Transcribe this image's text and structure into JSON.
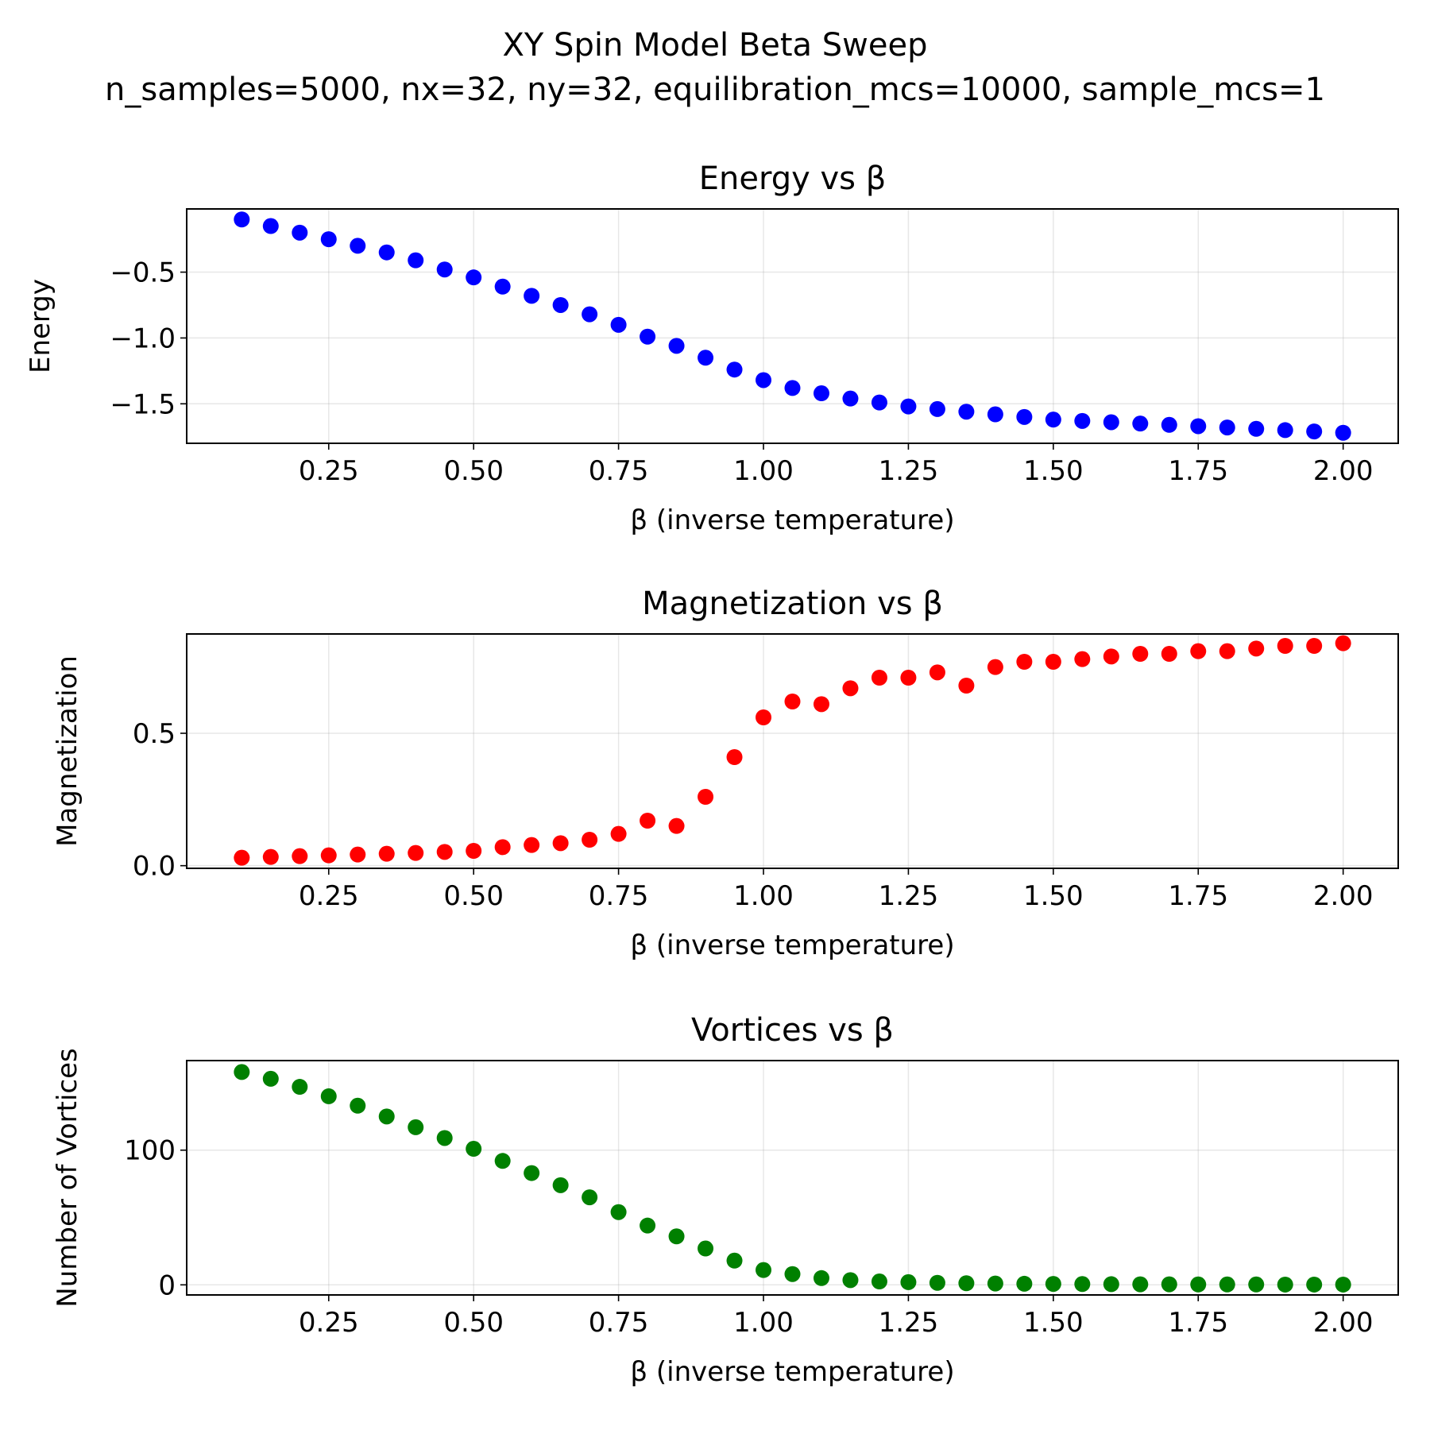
{
  "figure": {
    "title_line1": "XY Spin Model Beta Sweep",
    "title_line2": "n_samples=5000, nx=32, ny=32, equilibration_mcs=10000, sample_mcs=1"
  },
  "chart_data": [
    {
      "type": "scatter",
      "title": "Energy vs β",
      "xlabel": "β (inverse temperature)",
      "ylabel": "Energy",
      "xlim": [
        0.005,
        2.095
      ],
      "ylim": [
        -1.8,
        -0.02
      ],
      "xticks": [
        0.25,
        0.5,
        0.75,
        1.0,
        1.25,
        1.5,
        1.75,
        2.0
      ],
      "xtick_labels": [
        "0.25",
        "0.50",
        "0.75",
        "1.00",
        "1.25",
        "1.50",
        "1.75",
        "2.00"
      ],
      "yticks": [
        -0.5,
        -1.0,
        -1.5
      ],
      "ytick_labels": [
        "−0.5",
        "−1.0",
        "−1.5"
      ],
      "grid": true,
      "color": "#0000ff",
      "series": [
        {
          "x": [
            0.1,
            0.15,
            0.2,
            0.25,
            0.3,
            0.35,
            0.4,
            0.45,
            0.5,
            0.55,
            0.6,
            0.65,
            0.7,
            0.75,
            0.8,
            0.85,
            0.9,
            0.95,
            1.0,
            1.05,
            1.1,
            1.15,
            1.2,
            1.25,
            1.3,
            1.35,
            1.4,
            1.45,
            1.5,
            1.55,
            1.6,
            1.65,
            1.7,
            1.75,
            1.8,
            1.85,
            1.9,
            1.95,
            2.0
          ],
          "y": [
            -0.1,
            -0.15,
            -0.2,
            -0.25,
            -0.3,
            -0.35,
            -0.41,
            -0.48,
            -0.54,
            -0.61,
            -0.68,
            -0.75,
            -0.82,
            -0.9,
            -0.99,
            -1.06,
            -1.15,
            -1.24,
            -1.32,
            -1.38,
            -1.42,
            -1.46,
            -1.49,
            -1.52,
            -1.54,
            -1.56,
            -1.58,
            -1.6,
            -1.62,
            -1.63,
            -1.64,
            -1.65,
            -1.66,
            -1.67,
            -1.68,
            -1.69,
            -1.7,
            -1.71,
            -1.72
          ]
        }
      ]
    },
    {
      "type": "scatter",
      "title": "Magnetization vs β",
      "xlabel": "β (inverse temperature)",
      "ylabel": "Magnetization",
      "xlim": [
        0.005,
        2.095
      ],
      "ylim": [
        -0.01,
        0.875
      ],
      "xticks": [
        0.25,
        0.5,
        0.75,
        1.0,
        1.25,
        1.5,
        1.75,
        2.0
      ],
      "xtick_labels": [
        "0.25",
        "0.50",
        "0.75",
        "1.00",
        "1.25",
        "1.50",
        "1.75",
        "2.00"
      ],
      "yticks": [
        0.0,
        0.5
      ],
      "ytick_labels": [
        "0.0",
        "0.5"
      ],
      "grid": true,
      "color": "#ff0000",
      "series": [
        {
          "x": [
            0.1,
            0.15,
            0.2,
            0.25,
            0.3,
            0.35,
            0.4,
            0.45,
            0.5,
            0.55,
            0.6,
            0.65,
            0.7,
            0.75,
            0.8,
            0.85,
            0.9,
            0.95,
            1.0,
            1.05,
            1.1,
            1.15,
            1.2,
            1.25,
            1.3,
            1.35,
            1.4,
            1.45,
            1.5,
            1.55,
            1.6,
            1.65,
            1.7,
            1.75,
            1.8,
            1.85,
            1.9,
            1.95,
            2.0
          ],
          "y": [
            0.03,
            0.033,
            0.036,
            0.039,
            0.042,
            0.045,
            0.048,
            0.052,
            0.056,
            0.07,
            0.078,
            0.085,
            0.098,
            0.12,
            0.17,
            0.15,
            0.26,
            0.41,
            0.56,
            0.62,
            0.61,
            0.67,
            0.71,
            0.71,
            0.73,
            0.68,
            0.75,
            0.77,
            0.77,
            0.78,
            0.79,
            0.8,
            0.8,
            0.81,
            0.81,
            0.82,
            0.83,
            0.83,
            0.84
          ]
        }
      ]
    },
    {
      "type": "scatter",
      "title": "Vortices vs β",
      "xlabel": "β (inverse temperature)",
      "ylabel": "Number of Vortices",
      "xlim": [
        0.005,
        2.095
      ],
      "ylim": [
        -7.5,
        166.5
      ],
      "xticks": [
        0.25,
        0.5,
        0.75,
        1.0,
        1.25,
        1.5,
        1.75,
        2.0
      ],
      "xtick_labels": [
        "0.25",
        "0.50",
        "0.75",
        "1.00",
        "1.25",
        "1.50",
        "1.75",
        "2.00"
      ],
      "yticks": [
        0,
        100
      ],
      "ytick_labels": [
        "0",
        "100"
      ],
      "grid": true,
      "color": "#008000",
      "series": [
        {
          "x": [
            0.1,
            0.15,
            0.2,
            0.25,
            0.3,
            0.35,
            0.4,
            0.45,
            0.5,
            0.55,
            0.6,
            0.65,
            0.7,
            0.75,
            0.8,
            0.85,
            0.9,
            0.95,
            1.0,
            1.05,
            1.1,
            1.15,
            1.2,
            1.25,
            1.3,
            1.35,
            1.4,
            1.45,
            1.5,
            1.55,
            1.6,
            1.65,
            1.7,
            1.75,
            1.8,
            1.85,
            1.9,
            1.95,
            2.0
          ],
          "y": [
            158,
            153,
            147,
            140,
            133,
            125,
            117,
            109,
            101,
            92,
            83,
            74,
            65,
            54,
            44,
            36,
            27,
            18,
            11,
            8,
            5,
            3.5,
            2.5,
            2,
            1.5,
            1.2,
            1,
            0.8,
            0.7,
            0.6,
            0.5,
            0.4,
            0.4,
            0.3,
            0.3,
            0.3,
            0.2,
            0.2,
            0.2
          ]
        }
      ]
    }
  ]
}
